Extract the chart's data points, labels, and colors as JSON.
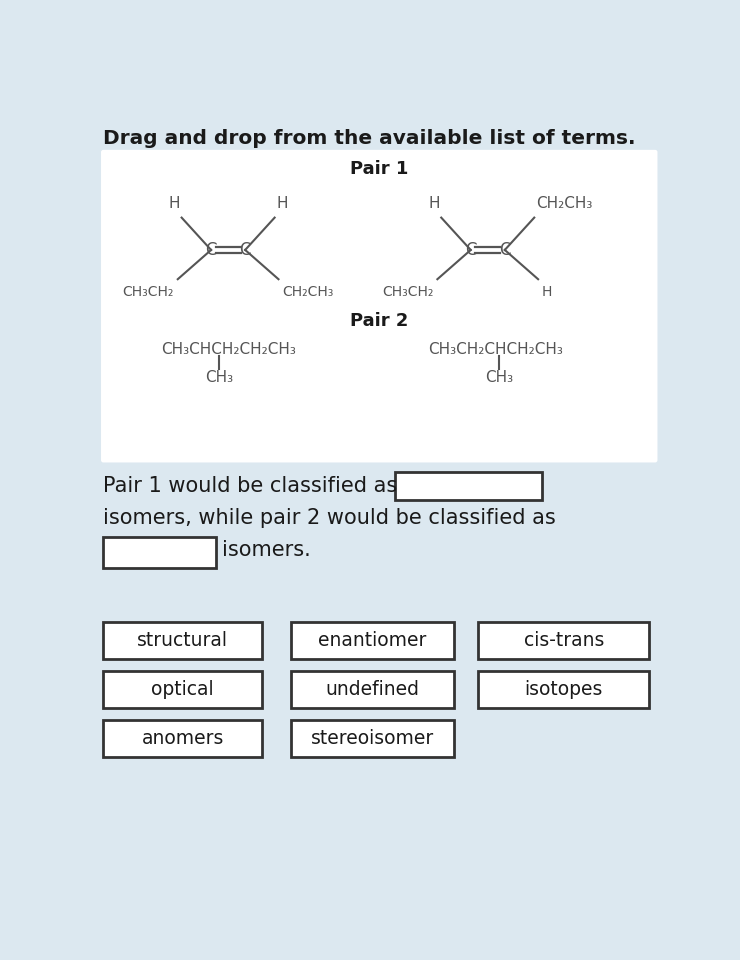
{
  "title": "Drag and drop from the available list of terms.",
  "bg_color": "#dce8f0",
  "panel_color": "#ffffff",
  "text_color": "#1a1a1a",
  "gray_color": "#555555",
  "pair1_label": "Pair 1",
  "pair2_label": "Pair 2",
  "sentence_line1": "Pair 1 would be classified as",
  "sentence_line2": "isomers, while pair 2 would be classified as",
  "sentence_line3": "isomers.",
  "terms": [
    [
      "structural",
      "enantiomer",
      "cis-trans"
    ],
    [
      "optical",
      "undefined",
      "isotopes"
    ],
    [
      "anomers",
      "stereoisomer"
    ]
  ]
}
